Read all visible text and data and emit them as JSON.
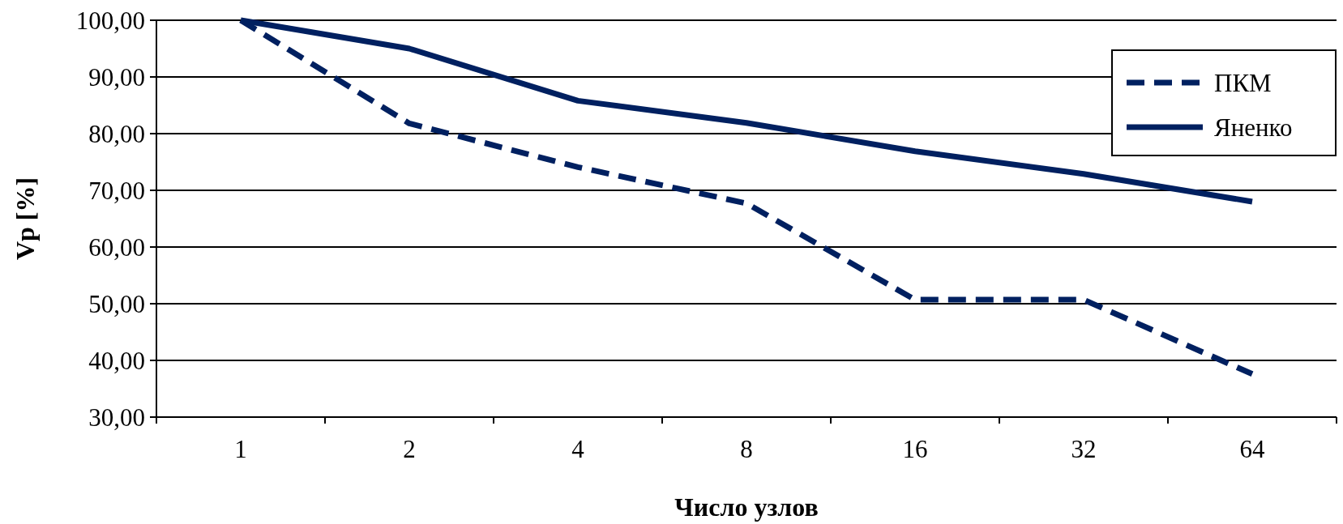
{
  "chart_data": {
    "type": "line",
    "xlabel": "Число узлов",
    "ylabel": "Vp [%]",
    "categories": [
      "1",
      "2",
      "4",
      "8",
      "16",
      "32",
      "64"
    ],
    "series": [
      {
        "name": "ПКМ",
        "color": "#002060",
        "line_style": "dashed",
        "values": [
          100,
          81.8,
          74.1,
          67.7,
          50.7,
          50.7,
          37.6
        ]
      },
      {
        "name": "Яненко",
        "color": "#002060",
        "line_style": "solid",
        "values": [
          100,
          95.0,
          85.8,
          81.9,
          76.9,
          72.9,
          68.0
        ]
      }
    ],
    "ylim": [
      30,
      100
    ],
    "yticks": [
      {
        "value": 30,
        "label": "30,00"
      },
      {
        "value": 40,
        "label": "40,00"
      },
      {
        "value": 50,
        "label": "50,00"
      },
      {
        "value": 60,
        "label": "60,00"
      },
      {
        "value": 70,
        "label": "70,00"
      },
      {
        "value": 80,
        "label": "80,00"
      },
      {
        "value": 90,
        "label": "90,00"
      },
      {
        "value": 100,
        "label": "100,00"
      }
    ],
    "grid": "y",
    "legend": "right",
    "marker": "none"
  }
}
